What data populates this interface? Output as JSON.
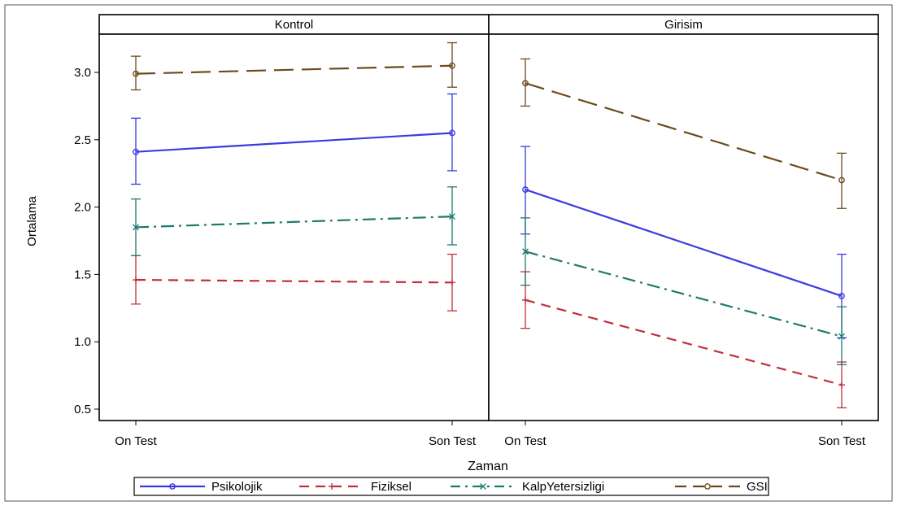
{
  "chart_data": {
    "type": "line",
    "xlabel": "Zaman",
    "ylabel": "Ortalama",
    "ylim": [
      0.4,
      3.3
    ],
    "yticks": [
      "0.5",
      "1.0",
      "1.5",
      "2.0",
      "2.5",
      "3.0"
    ],
    "categories": [
      "On Test",
      "Son Test"
    ],
    "legend_position": "bottom",
    "panels": [
      {
        "title": "Kontrol",
        "series": [
          {
            "name": "Psikolojik",
            "values": [
              2.41,
              2.55
            ],
            "lower": [
              2.17,
              2.27
            ],
            "upper": [
              2.66,
              2.84
            ]
          },
          {
            "name": "Fiziksel",
            "values": [
              1.46,
              1.44
            ],
            "lower": [
              1.28,
              1.23
            ],
            "upper": [
              1.64,
              1.65
            ]
          },
          {
            "name": "KalpYetersizligi",
            "values": [
              1.85,
              1.93
            ],
            "lower": [
              1.64,
              1.72
            ],
            "upper": [
              2.06,
              2.15
            ]
          },
          {
            "name": "GSI",
            "values": [
              2.99,
              3.05
            ],
            "lower": [
              2.87,
              2.89
            ],
            "upper": [
              3.12,
              3.22
            ]
          }
        ]
      },
      {
        "title": "Girisim",
        "series": [
          {
            "name": "Psikolojik",
            "values": [
              2.13,
              1.34
            ],
            "lower": [
              1.8,
              1.03
            ],
            "upper": [
              2.45,
              1.65
            ]
          },
          {
            "name": "Fiziksel",
            "values": [
              1.31,
              0.68
            ],
            "lower": [
              1.1,
              0.51
            ],
            "upper": [
              1.52,
              0.85
            ]
          },
          {
            "name": "KalpYetersizligi",
            "values": [
              1.67,
              1.04
            ],
            "lower": [
              1.42,
              0.83
            ],
            "upper": [
              1.92,
              1.26
            ]
          },
          {
            "name": "GSI",
            "values": [
              2.92,
              2.2
            ],
            "lower": [
              2.75,
              1.99
            ],
            "upper": [
              3.1,
              2.4
            ]
          }
        ]
      }
    ],
    "series_styles": [
      {
        "name": "Psikolojik",
        "color": "#3b3be0",
        "dash": "",
        "marker": "circle"
      },
      {
        "name": "Fiziksel",
        "color": "#c0303a",
        "dash": "12,8",
        "marker": "plus"
      },
      {
        "name": "KalpYetersizligi",
        "color": "#1f7a6e",
        "dash": "16,6,3,6",
        "marker": "x"
      },
      {
        "name": "GSI",
        "color": "#6b4a1c",
        "dash": "24,10",
        "marker": "circle"
      }
    ]
  }
}
